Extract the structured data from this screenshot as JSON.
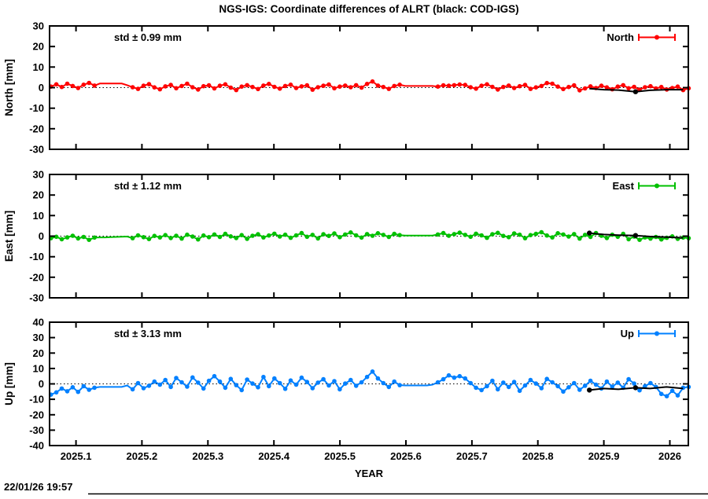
{
  "title": "NGS-IGS: Coordinate differences of ALRT (black: COD-IGS)",
  "footer": {
    "timestamp": "22/01/26 19:57"
  },
  "x_axis": {
    "label": "YEAR",
    "range": [
      2025.06,
      2026.028
    ],
    "ticks": [
      2025.1,
      2025.2,
      2025.3,
      2025.4,
      2025.5,
      2025.6,
      2025.7,
      2025.8,
      2025.9,
      2026.0
    ],
    "tick_labels": [
      "2025.1",
      "2025.2",
      "2025.3",
      "2025.4",
      "2025.5",
      "2025.6",
      "2025.7",
      "2025.8",
      "2025.9",
      "2026"
    ]
  },
  "colors": {
    "north": "#ff0000",
    "east": "#00c000",
    "up": "#0080ff",
    "cod_igs": "#000000"
  },
  "chart_data": [
    {
      "type": "scatter",
      "name": "North",
      "legend_label": "North",
      "ylabel": "North [mm]",
      "std_label": "std ± 0.99 mm",
      "color": "#ff0000",
      "ylim": [
        -30,
        30
      ],
      "ytick_step": 10,
      "x_start": 2025.062,
      "x_step": 0.00826,
      "point_gaps": [
        [
          2025.13,
          2025.178
        ],
        [
          2025.592,
          2025.645
        ]
      ],
      "values": [
        0.5,
        1.6,
        0.3,
        1.9,
        0.8,
        -0.2,
        1.4,
        2.3,
        1.0,
        2.0,
        2.0,
        2.0,
        2.0,
        2.0,
        1.2,
        0.2,
        -0.6,
        0.9,
        1.7,
        0.1,
        -0.8,
        0.6,
        1.3,
        -0.3,
        0.8,
        1.9,
        0.2,
        -0.9,
        0.7,
        1.1,
        -0.4,
        0.9,
        1.6,
        0.0,
        -1.2,
        0.5,
        1.2,
        0.3,
        -0.7,
        1.0,
        1.8,
        0.4,
        -0.5,
        0.8,
        1.4,
        -0.2,
        0.6,
        1.1,
        -1.0,
        0.2,
        0.9,
        1.5,
        -0.3,
        0.5,
        1.0,
        0.2,
        1.2,
        0.0,
        1.8,
        3.0,
        1.0,
        0.3,
        -0.6,
        0.8,
        1.4,
        0.8,
        0.8,
        0.8,
        0.8,
        0.8,
        0.8,
        0.5,
        1.1,
        0.9,
        1.2,
        1.5,
        1.3,
        0.2,
        -0.5,
        0.9,
        1.6,
        0.4,
        -0.9,
        0.3,
        1.0,
        -0.2,
        0.7,
        1.3,
        -0.6,
        0.1,
        0.8,
        2.2,
        1.9,
        0.5,
        -0.7,
        0.3,
        1.1,
        -1.3,
        -0.4,
        0.6,
        -0.2,
        0.9,
        0.1,
        -0.8,
        0.5,
        1.2,
        -0.3,
        0.4,
        -1.0,
        0.2,
        0.7,
        -0.4,
        0.3,
        -0.9,
        -0.2,
        0.5,
        -1.2,
        -0.3
      ],
      "cod_igs": {
        "x": [
          2025.878,
          2025.9,
          2025.922,
          2025.948,
          2025.97,
          2025.995,
          2026.02
        ],
        "y": [
          -0.5,
          -1.0,
          -1.2,
          -2.0,
          -1.3,
          -1.0,
          -1.0
        ],
        "dot_indices": [
          3
        ]
      }
    },
    {
      "type": "scatter",
      "name": "East",
      "legend_label": "East",
      "ylabel": "East [mm]",
      "std_label": "std ± 1.12 mm",
      "color": "#00c000",
      "ylim": [
        -30,
        30
      ],
      "ytick_step": 10,
      "x_start": 2025.062,
      "x_step": 0.00826,
      "point_gaps": [
        [
          2025.13,
          2025.178
        ],
        [
          2025.592,
          2025.645
        ]
      ],
      "values": [
        -1.0,
        -0.3,
        -1.5,
        -0.6,
        0.2,
        -1.1,
        -0.4,
        -1.8,
        -0.7,
        -0.6,
        -0.6,
        -0.5,
        -0.4,
        -0.3,
        -0.2,
        -1.0,
        0.4,
        -0.5,
        -1.4,
        0.1,
        -0.6,
        0.5,
        -0.9,
        0.2,
        -1.2,
        0.7,
        -0.2,
        -1.6,
        0.3,
        -0.5,
        0.8,
        -0.4,
        1.1,
        -0.1,
        -0.9,
        0.5,
        -1.3,
        0.2,
        0.9,
        -0.6,
        0.3,
        1.2,
        -0.2,
        0.7,
        -0.8,
        0.4,
        1.5,
        -0.3,
        0.6,
        -1.1,
        0.9,
        0.1,
        1.3,
        -0.5,
        0.8,
        1.8,
        0.4,
        -0.7,
        1.0,
        0.2,
        1.4,
        0.6,
        -0.4,
        1.1,
        0.5,
        0.3,
        0.3,
        0.3,
        0.3,
        0.3,
        0.3,
        0.8,
        1.5,
        0.2,
        1.0,
        1.7,
        0.6,
        -0.3,
        1.2,
        0.4,
        -0.8,
        0.9,
        1.6,
        0.1,
        -0.5,
        1.3,
        0.7,
        -1.0,
        0.5,
        1.1,
        1.9,
        0.3,
        -0.6,
        1.4,
        0.8,
        -0.2,
        1.0,
        -1.2,
        0.6,
        -0.4,
        1.5,
        0.2,
        -0.9,
        0.7,
        -0.3,
        1.1,
        -1.5,
        -0.2,
        -1.8,
        -0.6,
        -1.2,
        -0.4,
        -1.6,
        -0.8,
        -0.1,
        -1.3,
        -0.7,
        -1.0
      ],
      "cod_igs": {
        "x": [
          2025.878,
          2025.9,
          2025.922,
          2025.948,
          2025.97,
          2025.995,
          2026.02
        ],
        "y": [
          1.5,
          0.8,
          0.5,
          0.3,
          -0.2,
          -0.5,
          -0.8
        ],
        "dot_indices": [
          0,
          3
        ]
      }
    },
    {
      "type": "scatter",
      "name": "Up",
      "legend_label": "Up",
      "ylabel": "Up [mm]",
      "std_label": "std ± 3.13 mm",
      "color": "#0080ff",
      "ylim": [
        -40,
        40
      ],
      "ytick_step": 10,
      "x_start": 2025.062,
      "x_step": 0.00826,
      "point_gaps": [
        [
          2025.13,
          2025.178
        ],
        [
          2025.592,
          2025.645
        ]
      ],
      "values": [
        -7.0,
        -5.5,
        -3.0,
        -4.8,
        -2.2,
        -5.2,
        -1.5,
        -3.8,
        -2.5,
        -2.0,
        -2.0,
        -2.0,
        -2.0,
        -2.0,
        -1.0,
        -3.5,
        0.5,
        -2.8,
        -1.2,
        1.5,
        -0.5,
        2.5,
        -2.0,
        3.8,
        1.0,
        -1.8,
        4.2,
        0.8,
        -3.0,
        2.0,
        5.0,
        1.5,
        -2.5,
        3.2,
        -0.8,
        -4.0,
        2.8,
        0.2,
        -2.2,
        4.5,
        -1.5,
        3.5,
        0.5,
        -3.2,
        2.2,
        -0.5,
        4.0,
        1.2,
        -2.8,
        0.8,
        3.0,
        -1.0,
        1.8,
        -3.5,
        0.2,
        2.5,
        -1.2,
        1.0,
        4.5,
        8.0,
        3.5,
        0.5,
        -2.0,
        1.5,
        -0.8,
        -1.0,
        -1.0,
        -1.0,
        -1.0,
        -1.0,
        -0.5,
        1.0,
        3.0,
        5.5,
        4.0,
        5.0,
        3.5,
        0.5,
        -2.5,
        -4.0,
        -1.5,
        2.0,
        -3.5,
        0.8,
        -2.0,
        1.2,
        -4.5,
        -1.0,
        2.5,
        0.2,
        -2.8,
        3.2,
        1.0,
        -1.5,
        -5.0,
        -2.2,
        0.5,
        -3.8,
        -1.2,
        2.0,
        -0.5,
        -3.0,
        1.5,
        -1.8,
        0.8,
        -2.5,
        3.0,
        0.2,
        -4.2,
        -1.5,
        0.5,
        -2.0,
        -6.5,
        -8.0,
        -4.5,
        -7.5,
        -2.5,
        -2.0
      ],
      "cod_igs": {
        "x": [
          2025.878,
          2025.9,
          2025.922,
          2025.948,
          2025.97,
          2025.995,
          2026.02
        ],
        "y": [
          -4.0,
          -3.0,
          -3.5,
          -2.5,
          -3.0,
          -2.0,
          -3.0
        ],
        "dot_indices": [
          0,
          3
        ]
      }
    }
  ]
}
